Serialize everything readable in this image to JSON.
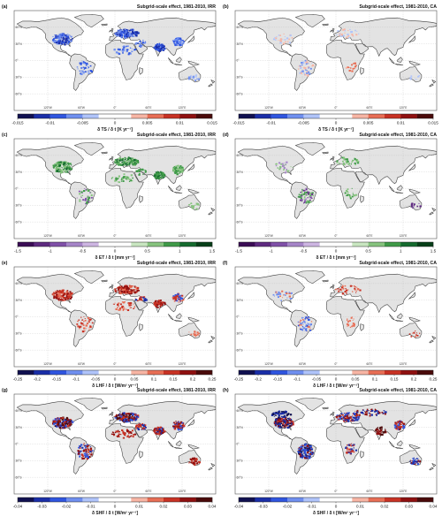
{
  "figure": {
    "lon_ticks": [
      "120°W",
      "60°W",
      "0°",
      "60°E",
      "120°E"
    ],
    "lat_ticks": [
      "60°N",
      "30°N",
      "0°",
      "30°S",
      "60°S"
    ],
    "colors": {
      "ocean": "#ffffff",
      "land": "#e3e3e3",
      "coast": "#3a3a3a",
      "grid": "#b8b8b8",
      "frame": "#555555"
    },
    "rows": [
      {
        "variable": "TS",
        "colorbar": {
          "label": "δ TS / δ t [K yr⁻¹]",
          "ticks": [
            "-0.015",
            "-0.01",
            "-0.005",
            "0",
            "0.005",
            "0.01",
            "0.015"
          ],
          "colors": [
            "#101050",
            "#1a2ea8",
            "#2f55e0",
            "#6f8ff0",
            "#b0c4fa",
            "#ffffff",
            "#ffffff",
            "#f7b5a4",
            "#e86e55",
            "#c83224",
            "#8f1010",
            "#4a0a0a"
          ]
        },
        "panels": [
          {
            "letter": "(a)",
            "title": "Subgrid-scale effect, 1981-2010, IRR"
          },
          {
            "letter": "(b)",
            "title": "Subgrid-scale effect, 1981-2010, CA"
          }
        ]
      },
      {
        "variable": "ET",
        "colorbar": {
          "label": "δ ET / δ t [mm yr⁻¹]",
          "ticks": [
            "-1.5",
            "-1",
            "-0.5",
            "0",
            "0.5",
            "1",
            "1.5"
          ],
          "colors": [
            "#3a0c55",
            "#5e2a80",
            "#8050a8",
            "#a685c8",
            "#cdb5e2",
            "#ffffff",
            "#ffffff",
            "#c8e6c0",
            "#86c37e",
            "#3f9a48",
            "#146b2e",
            "#063f18"
          ]
        },
        "panels": [
          {
            "letter": "(c)",
            "title": "Subgrid-scale effect, 1981-2010, IRR"
          },
          {
            "letter": "(d)",
            "title": "Subgrid-scale effect, 1981-2010, CA"
          }
        ]
      },
      {
        "variable": "LHF",
        "colorbar": {
          "label": "δ LHF / δ t [W/m² yr⁻¹]",
          "ticks": [
            "-0.25",
            "-0.2",
            "-0.15",
            "-0.1",
            "-0.05",
            "0",
            "0.05",
            "0.1",
            "0.15",
            "0.2",
            "0.25"
          ],
          "colors": [
            "#101050",
            "#1a2ea8",
            "#2f55e0",
            "#6f8ff0",
            "#b0c4fa",
            "#ffffff",
            "#ffffff",
            "#f7b5a4",
            "#e86e55",
            "#c83224",
            "#8f1010",
            "#4a0a0a"
          ]
        },
        "panels": [
          {
            "letter": "(e)",
            "title": "Subgrid-scale effect, 1981-2010, IRR"
          },
          {
            "letter": "(f)",
            "title": "Subgrid-scale effect, 1981-2010, CA"
          }
        ]
      },
      {
        "variable": "SHF",
        "colorbar": {
          "label": "δ SHF / δ t [W/m² yr⁻¹]",
          "ticks": [
            "-0.04",
            "-0.03",
            "-0.02",
            "-0.01",
            "0",
            "0.01",
            "0.02",
            "0.03",
            "0.04"
          ],
          "colors": [
            "#101050",
            "#1a2ea8",
            "#2f55e0",
            "#6f8ff0",
            "#b0c4fa",
            "#ffffff",
            "#ffffff",
            "#f7b5a4",
            "#e86e55",
            "#c83224",
            "#8f1010",
            "#4a0a0a"
          ]
        },
        "panels": [
          {
            "letter": "(g)",
            "title": "Subgrid-scale effect, 1981-2010, IRR"
          },
          {
            "letter": "(h)",
            "title": "Subgrid-scale effect, 1981-2010, CA"
          }
        ]
      }
    ]
  }
}
